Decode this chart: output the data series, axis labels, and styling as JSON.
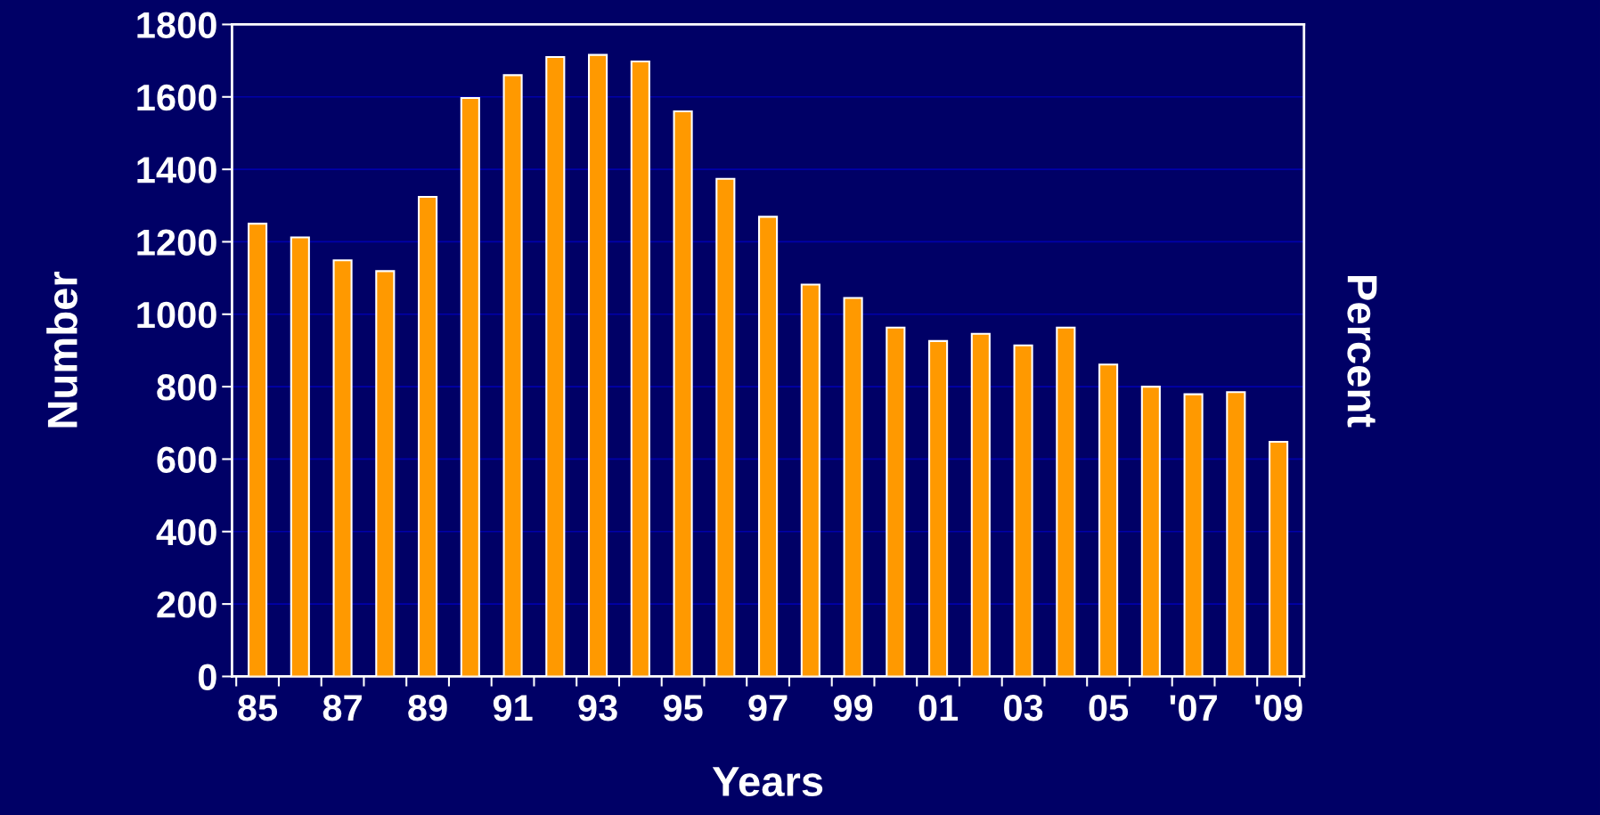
{
  "chart_data": {
    "type": "bar",
    "xlabel": "Years",
    "ylabel": "Number",
    "y2label": "Percent",
    "categories": [
      "85",
      null,
      "87",
      null,
      "89",
      null,
      "91",
      null,
      "93",
      null,
      "95",
      null,
      "97",
      null,
      "99",
      null,
      "01",
      null,
      "03",
      null,
      "05",
      null,
      "'07",
      null,
      "'09"
    ],
    "values": [
      1250,
      1212,
      1149,
      1119,
      1324,
      1597,
      1660,
      1710,
      1716,
      1698,
      1560,
      1374,
      1269,
      1082,
      1045,
      963,
      926,
      946,
      914,
      963,
      861,
      800,
      779,
      785,
      648
    ],
    "color": "#ff9900",
    "ylim": [
      0,
      1800
    ],
    "yticks": [
      0,
      200,
      400,
      600,
      800,
      1000,
      1200,
      1400,
      1600,
      1800
    ],
    "grid": "y"
  }
}
